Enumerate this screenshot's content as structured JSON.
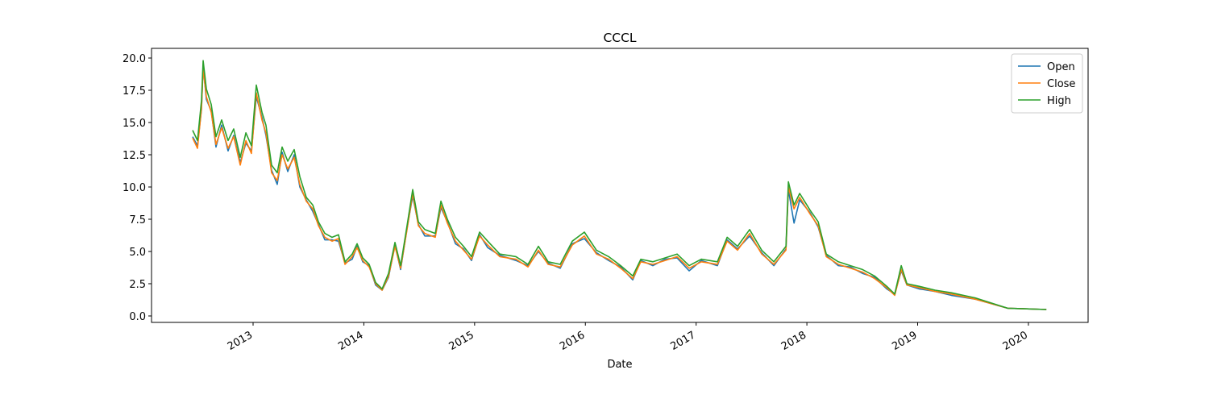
{
  "chart_data": {
    "type": "line",
    "title": "CCCL",
    "xlabel": "Date",
    "x": [
      2012.454,
      2012.498,
      2012.534,
      2012.549,
      2012.578,
      2012.622,
      2012.665,
      2012.716,
      2012.774,
      2012.825,
      2012.884,
      2012.935,
      2012.985,
      2013.029,
      2013.08,
      2013.116,
      2013.167,
      2013.218,
      2013.262,
      2013.313,
      2013.371,
      2013.422,
      2013.48,
      2013.539,
      2013.59,
      2013.648,
      2013.713,
      2013.771,
      2013.83,
      2013.895,
      2013.939,
      2013.99,
      2014.048,
      2014.106,
      2014.165,
      2014.223,
      2014.281,
      2014.332,
      2014.39,
      2014.441,
      2014.492,
      2014.55,
      2014.645,
      2014.696,
      2014.754,
      2014.827,
      2014.9,
      2014.972,
      2015.045,
      2015.118,
      2015.227,
      2015.373,
      2015.482,
      2015.576,
      2015.664,
      2015.773,
      2015.882,
      2015.991,
      2016.1,
      2016.21,
      2016.319,
      2016.428,
      2016.501,
      2016.61,
      2016.719,
      2016.828,
      2016.937,
      2017.047,
      2017.192,
      2017.28,
      2017.374,
      2017.483,
      2017.592,
      2017.702,
      2017.811,
      2017.833,
      2017.884,
      2017.935,
      2018.029,
      2018.102,
      2018.175,
      2018.284,
      2018.393,
      2018.502,
      2018.611,
      2018.721,
      2018.793,
      2018.852,
      2018.903,
      2019.012,
      2019.157,
      2019.303,
      2019.521,
      2019.812,
      2020.162
    ],
    "series": [
      {
        "name": "Open",
        "color": "#1f77b4",
        "values": [
          13.9,
          13.2,
          16.0,
          19.4,
          16.8,
          15.9,
          13.1,
          14.8,
          12.8,
          14.0,
          11.9,
          13.4,
          12.8,
          17.0,
          15.4,
          14.0,
          11.3,
          10.2,
          12.7,
          11.2,
          12.5,
          10.0,
          9.0,
          8.1,
          7.1,
          5.9,
          5.9,
          5.8,
          4.1,
          4.4,
          5.4,
          4.2,
          3.9,
          2.4,
          2.0,
          3.0,
          5.5,
          3.6,
          6.8,
          9.3,
          7.1,
          6.2,
          6.2,
          8.4,
          7.3,
          5.6,
          5.2,
          4.3,
          6.3,
          5.3,
          4.7,
          4.3,
          3.9,
          5.0,
          4.1,
          3.7,
          5.6,
          6.0,
          4.9,
          4.3,
          3.8,
          2.8,
          4.3,
          3.9,
          4.4,
          4.5,
          3.5,
          4.3,
          3.9,
          5.9,
          5.2,
          6.2,
          4.9,
          3.9,
          5.2,
          9.8,
          7.2,
          9.0,
          8.0,
          6.9,
          4.7,
          3.9,
          3.8,
          3.3,
          3.0,
          2.1,
          1.7,
          3.5,
          2.4,
          2.1,
          1.9,
          1.6,
          1.3,
          0.6,
          0.5
        ]
      },
      {
        "name": "Close",
        "color": "#ff7f0e",
        "values": [
          13.8,
          13.0,
          16.1,
          19.2,
          17.0,
          15.8,
          13.3,
          14.6,
          13.0,
          13.9,
          11.7,
          13.6,
          12.6,
          17.3,
          15.2,
          14.2,
          11.1,
          10.5,
          12.5,
          11.4,
          12.3,
          10.2,
          8.9,
          8.3,
          7.0,
          6.1,
          5.8,
          6.0,
          4.0,
          4.6,
          5.3,
          4.3,
          3.8,
          2.5,
          2.0,
          3.1,
          5.4,
          3.7,
          6.7,
          9.5,
          7.0,
          6.4,
          6.1,
          8.6,
          7.2,
          5.8,
          5.1,
          4.4,
          6.2,
          5.5,
          4.6,
          4.4,
          3.8,
          5.1,
          4.0,
          3.8,
          5.5,
          6.2,
          4.8,
          4.4,
          3.7,
          2.9,
          4.2,
          4.0,
          4.3,
          4.6,
          3.7,
          4.2,
          4.0,
          5.8,
          5.1,
          6.4,
          4.8,
          4.0,
          5.1,
          10.0,
          8.3,
          9.2,
          7.9,
          7.0,
          4.6,
          4.0,
          3.7,
          3.4,
          2.9,
          2.2,
          1.6,
          3.6,
          2.4,
          2.2,
          1.9,
          1.7,
          1.3,
          0.6,
          0.5
        ]
      },
      {
        "name": "High",
        "color": "#2ca02c",
        "values": [
          14.4,
          13.6,
          16.7,
          19.8,
          17.6,
          16.4,
          13.9,
          15.2,
          13.6,
          14.5,
          12.3,
          14.2,
          13.2,
          17.9,
          15.8,
          14.8,
          11.7,
          11.1,
          13.1,
          12.0,
          12.9,
          10.8,
          9.2,
          8.6,
          7.3,
          6.4,
          6.1,
          6.3,
          4.2,
          4.8,
          5.6,
          4.5,
          4.0,
          2.6,
          2.1,
          3.3,
          5.7,
          3.9,
          7.0,
          9.8,
          7.3,
          6.7,
          6.4,
          8.9,
          7.5,
          6.1,
          5.4,
          4.6,
          6.5,
          5.8,
          4.8,
          4.6,
          4.0,
          5.4,
          4.2,
          4.0,
          5.8,
          6.5,
          5.1,
          4.6,
          3.9,
          3.1,
          4.4,
          4.2,
          4.5,
          4.8,
          3.9,
          4.4,
          4.2,
          6.1,
          5.4,
          6.7,
          5.1,
          4.2,
          5.4,
          10.4,
          8.6,
          9.5,
          8.2,
          7.3,
          4.8,
          4.2,
          3.9,
          3.6,
          3.1,
          2.3,
          1.7,
          3.9,
          2.5,
          2.3,
          2.0,
          1.8,
          1.4,
          0.6,
          0.5
        ]
      }
    ],
    "xlim": [
      2012.083,
      2020.539
    ],
    "xticks": [
      2013,
      2014,
      2015,
      2016,
      2017,
      2018,
      2019,
      2020
    ],
    "ylim": [
      -0.5,
      20.75
    ],
    "yticks": [
      {
        "value": 0,
        "label": "0.0"
      },
      2.5,
      {
        "value": 5,
        "label": "5.0"
      },
      7.5,
      {
        "value": 10,
        "label": "10.0"
      },
      12.5,
      {
        "value": 15,
        "label": "15.0"
      },
      17.5,
      {
        "value": 20,
        "label": "20.0"
      }
    ],
    "grid": false,
    "legend": "upper right"
  }
}
